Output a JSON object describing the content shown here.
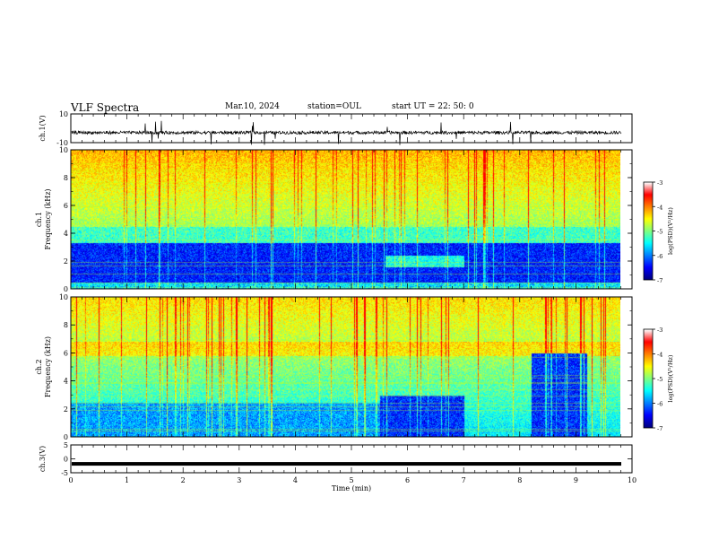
{
  "header": {
    "title": "VLF Spectra",
    "date": "Mar.10, 2024",
    "station": "station=OUL",
    "start": "start  UT =   22: 50: 0"
  },
  "colors": {
    "cmap": [
      "#000080",
      "#0000ff",
      "#0080ff",
      "#00ffff",
      "#80ff80",
      "#ffff00",
      "#ff8000",
      "#ff0000",
      "#ffffff"
    ]
  },
  "chart_data": [
    {
      "type": "line",
      "name": "ch1-waveform",
      "ylabel": "ch.1(V)",
      "ylim": [
        -10,
        10
      ],
      "yticks": [
        "10",
        "-10"
      ],
      "xlim": [
        0,
        10
      ],
      "baseline": -3,
      "note": ""
    },
    {
      "type": "heatmap",
      "name": "ch1-spectrogram",
      "ylabel_line1": "ch.1",
      "ylabel_line2": "Frequency (kHz)",
      "ylim": [
        0,
        10
      ],
      "yticks": [
        "0",
        "2",
        "4",
        "6",
        "8",
        "10"
      ],
      "xlim": [
        0,
        10
      ],
      "data_end_min": 9.8,
      "colorbar": {
        "label": "log(PSD)(V²/Hz)",
        "range": [
          -7,
          -3
        ],
        "ticks": [
          "-3",
          "-4",
          "-5",
          "-6",
          "-7"
        ]
      }
    },
    {
      "type": "heatmap",
      "name": "ch2-spectrogram",
      "ylabel_line1": "ch.2",
      "ylabel_line2": "Frequency (kHz)",
      "ylim": [
        0,
        10
      ],
      "yticks": [
        "0",
        "2",
        "4",
        "6",
        "8",
        "10"
      ],
      "xlim": [
        0,
        10
      ],
      "data_end_min": 9.8,
      "colorbar": {
        "label": "log(PSD)(V²/Hz)",
        "range": [
          -7,
          -3
        ],
        "ticks": [
          "-3",
          "-4",
          "-5",
          "-6",
          "-7"
        ]
      }
    },
    {
      "type": "line",
      "name": "ch3-waveform",
      "ylabel": "ch.3(V)",
      "ylim": [
        -5,
        5
      ],
      "yticks": [
        "5",
        "0",
        "-5"
      ],
      "xlim": [
        0,
        10
      ],
      "baseline": -1.8,
      "xlabel": "Time (min)",
      "xticks": [
        "0",
        "1",
        "2",
        "3",
        "4",
        "5",
        "6",
        "7",
        "8",
        "9",
        "10"
      ]
    }
  ]
}
